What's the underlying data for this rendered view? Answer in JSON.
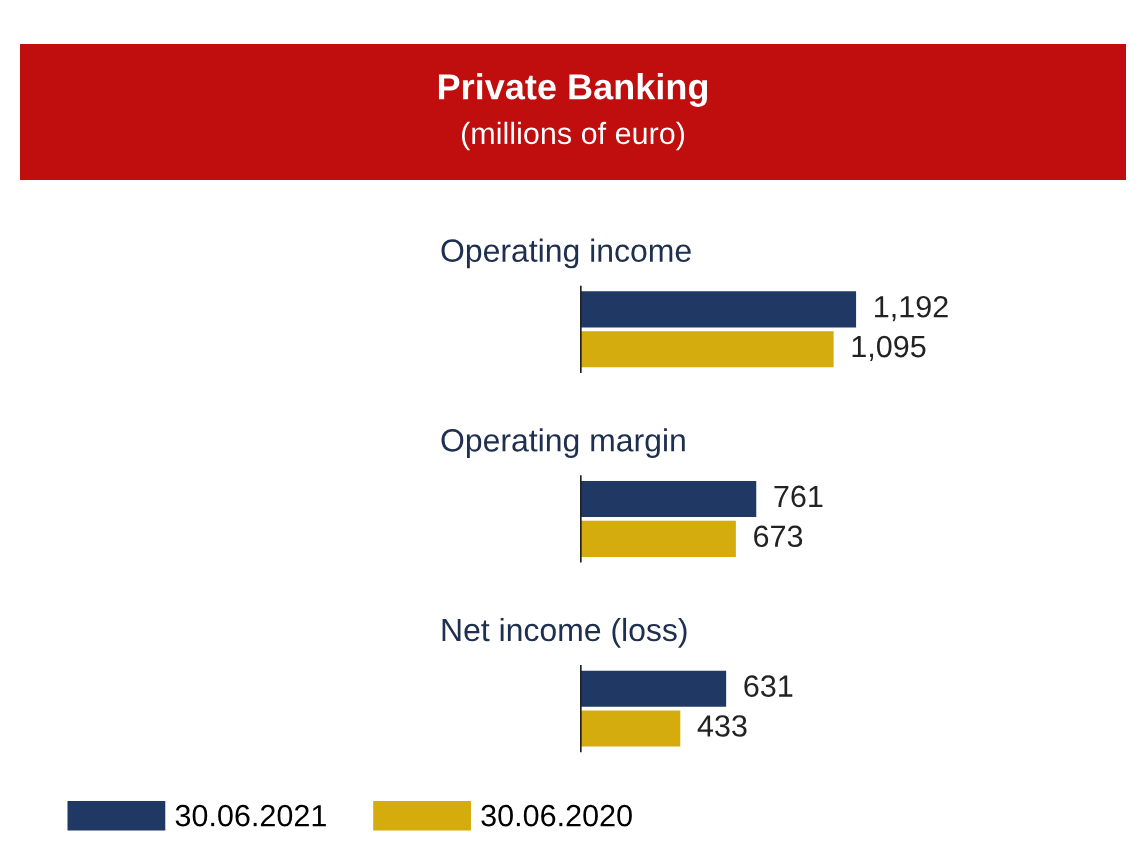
{
  "chart_data": {
    "type": "bar",
    "orientation": "horizontal",
    "title": "Private Banking",
    "subtitle": "(millions of euro)",
    "categories": [
      "Operating income",
      "Operating margin",
      "Net income (loss)"
    ],
    "series": [
      {
        "name": "30.06.2021",
        "color": "#1f3864",
        "values": [
          1192,
          761,
          631
        ],
        "value_labels": [
          "1,192",
          "761",
          "631"
        ]
      },
      {
        "name": "30.06.2020",
        "color": "#d4ac0d",
        "values": [
          1095,
          673,
          433
        ],
        "value_labels": [
          "1,095",
          "673",
          "433"
        ]
      }
    ],
    "legend": "bottom left"
  }
}
